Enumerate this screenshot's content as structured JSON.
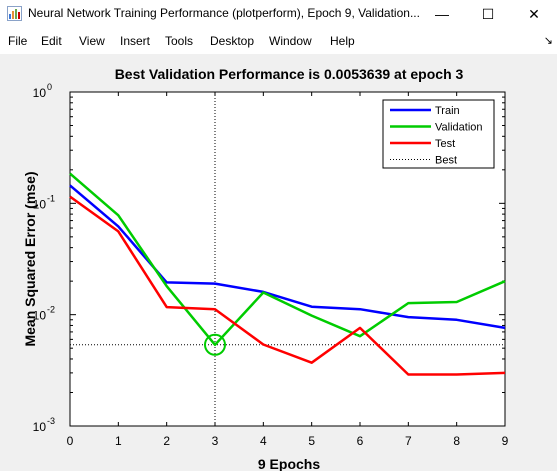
{
  "window": {
    "title": "Neural Network Training Performance (plotperform), Epoch 9, Validation...",
    "minimize_glyph": "—",
    "maximize_glyph": "☐",
    "close_glyph": "✕",
    "app_icon": "matlab-figure-icon"
  },
  "menu": {
    "items": [
      "File",
      "Edit",
      "View",
      "Insert",
      "Tools",
      "Desktop",
      "Window",
      "Help"
    ],
    "dock_glyph": "↘"
  },
  "chart_data": {
    "type": "line",
    "title": "Best Validation Performance is 0.0053639 at epoch 3",
    "xlabel": "9 Epochs",
    "ylabel": "Mean Squared Error  (mse)",
    "xlim": [
      0,
      9
    ],
    "ylim": [
      0.001,
      1
    ],
    "yscale": "log",
    "x_ticks": [
      "0",
      "1",
      "2",
      "3",
      "4",
      "5",
      "6",
      "7",
      "8",
      "9"
    ],
    "y_ticks": [
      {
        "value": 1,
        "mant": "10",
        "exp": "0"
      },
      {
        "value": 0.1,
        "mant": "10",
        "exp": "-1"
      },
      {
        "value": 0.01,
        "mant": "10",
        "exp": "-2"
      },
      {
        "value": 0.001,
        "mant": "10",
        "exp": "-3"
      }
    ],
    "x": [
      0,
      1,
      2,
      3,
      4,
      5,
      6,
      7,
      8,
      9
    ],
    "series": [
      {
        "name": "Train",
        "color": "#0000ff",
        "style": "solid",
        "values": [
          0.145,
          0.062,
          0.0195,
          0.019,
          0.016,
          0.0118,
          0.0112,
          0.0095,
          0.009,
          0.0076
        ]
      },
      {
        "name": "Validation",
        "color": "#00cc00",
        "style": "solid",
        "values": [
          0.185,
          0.078,
          0.018,
          0.0053639,
          0.0158,
          0.0098,
          0.0064,
          0.0127,
          0.013,
          0.02
        ]
      },
      {
        "name": "Test",
        "color": "#ff0000",
        "style": "solid",
        "values": [
          0.115,
          0.056,
          0.0117,
          0.0112,
          0.0054,
          0.0037,
          0.0076,
          0.0029,
          0.0029,
          0.003
        ]
      }
    ],
    "best": {
      "name": "Best",
      "epoch": 3,
      "value": 0.0053639,
      "color": "#000000",
      "style": "dotted"
    },
    "legend_position": "top-right",
    "grid": false
  }
}
